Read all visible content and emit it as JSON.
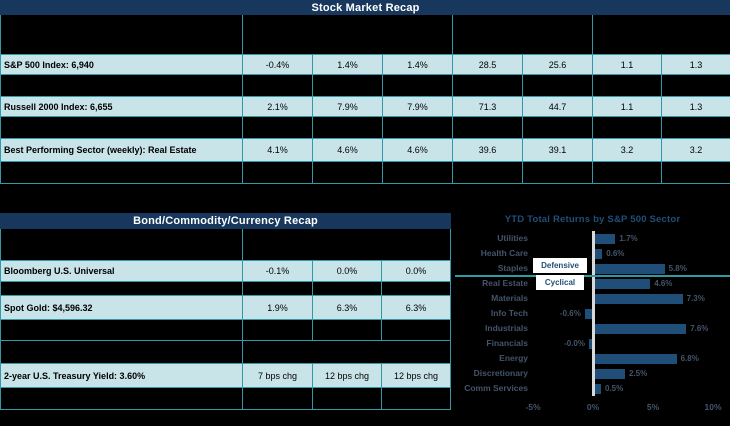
{
  "top_table": {
    "title": "Stock Market Recap",
    "rows": [
      {
        "label": "S&P 500 Index: 6,940",
        "values": [
          "-0.4%",
          "1.4%",
          "1.4%",
          "28.5",
          "25.6",
          "1.1",
          "1.3"
        ]
      },
      {
        "label": "Russell 2000 Index: 6,655",
        "values": [
          "2.1%",
          "7.9%",
          "7.9%",
          "71.3",
          "44.7",
          "1.1",
          "1.3"
        ]
      },
      {
        "label": "Best Performing Sector (weekly): Real Estate",
        "values": [
          "4.1%",
          "4.6%",
          "4.6%",
          "39.6",
          "39.1",
          "3.2",
          "3.2"
        ]
      }
    ]
  },
  "bottom_table": {
    "title": "Bond/Commodity/Currency Recap",
    "rows": [
      {
        "label": "Bloomberg U.S. Universal",
        "values": [
          "-0.1%",
          "0.0%",
          "0.0%"
        ]
      },
      {
        "label": "Spot Gold: $4,596.32",
        "values": [
          "1.9%",
          "6.3%",
          "6.3%"
        ]
      },
      {
        "label": "2-year U.S. Treasury Yield: 3.60%",
        "values": [
          "7 bps chg",
          "12 bps chg",
          "12 bps chg"
        ]
      }
    ]
  },
  "chart_data": {
    "type": "bar",
    "orientation": "horizontal",
    "title": "YTD Total Returns by S&P 500 Sector",
    "categories": [
      "Utilities",
      "Health Care",
      "Staples",
      "Real Estate",
      "Materials",
      "Info Tech",
      "Industrials",
      "Financials",
      "Energy",
      "Discretionary",
      "Comm Services"
    ],
    "values": [
      1.7,
      0.6,
      5.8,
      4.6,
      7.3,
      -0.6,
      7.6,
      -0.0,
      6.8,
      2.5,
      0.5
    ],
    "labels": [
      "1.7%",
      "0.6%",
      "5.8%",
      "4.6%",
      "7.3%",
      "-0.6%",
      "7.6%",
      "-0.0%",
      "6.8%",
      "2.5%",
      "0.5%"
    ],
    "x_ticks": [
      "-5%",
      "0%",
      "5%",
      "10%"
    ],
    "x_tick_values": [
      -5,
      0,
      5,
      10
    ],
    "xlim": [
      -6.5,
      11.4
    ],
    "legend_position": "none",
    "grid": false,
    "group_divider_after": "Staples",
    "annotations": [
      {
        "text": "Defensive"
      },
      {
        "text": "Cyclical"
      }
    ]
  },
  "colors": {
    "background": "#000000",
    "header_bar": "#17375D",
    "cell_fill": "#C9E4E9",
    "table_border": "#3498A8",
    "bar_fill": "#1F4E79",
    "chart_text": "#44546A",
    "divider_line": "#2E9AA6",
    "zero_line": "#D9D9D9"
  }
}
